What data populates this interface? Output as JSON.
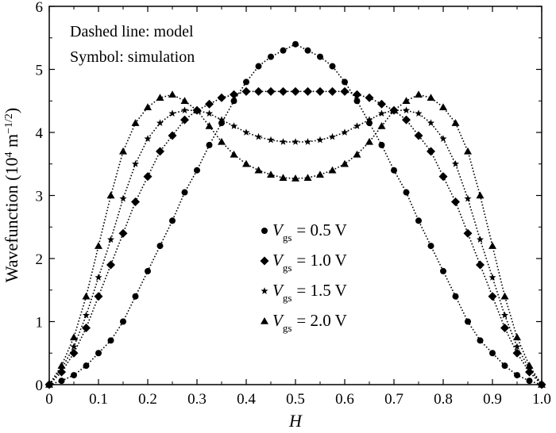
{
  "chart_data": {
    "type": "line",
    "title": "",
    "xlabel": "H",
    "ylabel": "Wavefunction (10",
    "ylabel_exp": "4",
    "ylabel_unit": " m",
    "ylabel_unit_exp": "−1/2",
    "ylabel_close": ")",
    "xlim": [
      0,
      1.0
    ],
    "ylim": [
      0,
      6
    ],
    "x_ticks": [
      "0",
      "0.1",
      "0.2",
      "0.3",
      "0.4",
      "0.5",
      "0.6",
      "0.7",
      "0.8",
      "0.9",
      "1.0"
    ],
    "y_ticks": [
      "0",
      "1",
      "2",
      "3",
      "4",
      "5",
      "6"
    ],
    "annotations": [
      "Dashed line: model",
      "Symbol: simulation"
    ],
    "legend_placement": "center",
    "series": [
      {
        "name": "V gs = 0.5 V",
        "legend_var": "V",
        "legend_sub": "gs",
        "legend_value": "= 0.5 V",
        "marker": "circle",
        "x": [
          0,
          0.025,
          0.05,
          0.075,
          0.1,
          0.125,
          0.15,
          0.175,
          0.2,
          0.225,
          0.25,
          0.275,
          0.3,
          0.325,
          0.35,
          0.375,
          0.4,
          0.425,
          0.45,
          0.475,
          0.5,
          0.525,
          0.55,
          0.575,
          0.6,
          0.625,
          0.65,
          0.675,
          0.7,
          0.725,
          0.75,
          0.775,
          0.8,
          0.825,
          0.85,
          0.875,
          0.9,
          0.925,
          0.95,
          0.975,
          1.0
        ],
        "y": [
          0,
          0.06,
          0.15,
          0.3,
          0.5,
          0.7,
          1.0,
          1.4,
          1.8,
          2.2,
          2.6,
          3.05,
          3.4,
          3.8,
          4.15,
          4.5,
          4.8,
          5.05,
          5.2,
          5.3,
          5.4,
          5.3,
          5.2,
          5.05,
          4.8,
          4.5,
          4.15,
          3.8,
          3.4,
          3.05,
          2.6,
          2.2,
          1.8,
          1.4,
          1.0,
          0.7,
          0.5,
          0.3,
          0.15,
          0.06,
          0
        ]
      },
      {
        "name": "V gs = 1.0 V",
        "legend_var": "V",
        "legend_sub": "gs",
        "legend_value": "= 1.0 V",
        "marker": "diamond",
        "x": [
          0,
          0.025,
          0.05,
          0.075,
          0.1,
          0.125,
          0.15,
          0.175,
          0.2,
          0.225,
          0.25,
          0.275,
          0.3,
          0.325,
          0.35,
          0.375,
          0.4,
          0.425,
          0.45,
          0.475,
          0.5,
          0.525,
          0.55,
          0.575,
          0.6,
          0.625,
          0.65,
          0.675,
          0.7,
          0.725,
          0.75,
          0.775,
          0.8,
          0.825,
          0.85,
          0.875,
          0.9,
          0.925,
          0.95,
          0.975,
          1.0
        ],
        "y": [
          0,
          0.2,
          0.5,
          0.9,
          1.4,
          1.9,
          2.4,
          2.9,
          3.3,
          3.7,
          3.95,
          4.2,
          4.35,
          4.45,
          4.55,
          4.6,
          4.65,
          4.65,
          4.65,
          4.65,
          4.65,
          4.65,
          4.65,
          4.65,
          4.65,
          4.6,
          4.55,
          4.45,
          4.35,
          4.2,
          3.95,
          3.7,
          3.3,
          2.9,
          2.4,
          1.9,
          1.4,
          0.9,
          0.5,
          0.2,
          0
        ]
      },
      {
        "name": "V gs = 1.5 V",
        "legend_var": "V",
        "legend_sub": "gs",
        "legend_value": "= 1.5 V",
        "marker": "star",
        "x": [
          0,
          0.025,
          0.05,
          0.075,
          0.1,
          0.125,
          0.15,
          0.175,
          0.2,
          0.225,
          0.25,
          0.275,
          0.3,
          0.325,
          0.35,
          0.375,
          0.4,
          0.425,
          0.45,
          0.475,
          0.5,
          0.525,
          0.55,
          0.575,
          0.6,
          0.625,
          0.65,
          0.675,
          0.7,
          0.725,
          0.75,
          0.775,
          0.8,
          0.825,
          0.85,
          0.875,
          0.9,
          0.925,
          0.95,
          0.975,
          1.0
        ],
        "y": [
          0,
          0.25,
          0.6,
          1.1,
          1.7,
          2.3,
          2.95,
          3.5,
          3.9,
          4.15,
          4.3,
          4.35,
          4.35,
          4.3,
          4.2,
          4.1,
          4.0,
          3.93,
          3.88,
          3.85,
          3.85,
          3.85,
          3.88,
          3.93,
          4.0,
          4.1,
          4.2,
          4.3,
          4.35,
          4.35,
          4.3,
          4.15,
          3.9,
          3.5,
          2.95,
          2.3,
          1.7,
          1.1,
          0.6,
          0.25,
          0
        ]
      },
      {
        "name": "V gs = 2.0 V",
        "legend_var": "V",
        "legend_sub": "gs",
        "legend_value": "= 2.0 V",
        "marker": "triangle",
        "x": [
          0,
          0.025,
          0.05,
          0.075,
          0.1,
          0.125,
          0.15,
          0.175,
          0.2,
          0.225,
          0.25,
          0.275,
          0.3,
          0.325,
          0.35,
          0.375,
          0.4,
          0.425,
          0.45,
          0.475,
          0.5,
          0.525,
          0.55,
          0.575,
          0.6,
          0.625,
          0.65,
          0.675,
          0.7,
          0.725,
          0.75,
          0.775,
          0.8,
          0.825,
          0.85,
          0.875,
          0.9,
          0.925,
          0.95,
          0.975,
          1.0
        ],
        "y": [
          0,
          0.3,
          0.75,
          1.4,
          2.2,
          3.0,
          3.7,
          4.15,
          4.4,
          4.55,
          4.6,
          4.5,
          4.35,
          4.1,
          3.85,
          3.65,
          3.5,
          3.4,
          3.33,
          3.28,
          3.27,
          3.28,
          3.33,
          3.4,
          3.5,
          3.65,
          3.85,
          4.1,
          4.35,
          4.5,
          4.6,
          4.55,
          4.4,
          4.15,
          3.7,
          3.0,
          2.2,
          1.4,
          0.75,
          0.3,
          0
        ]
      }
    ]
  }
}
